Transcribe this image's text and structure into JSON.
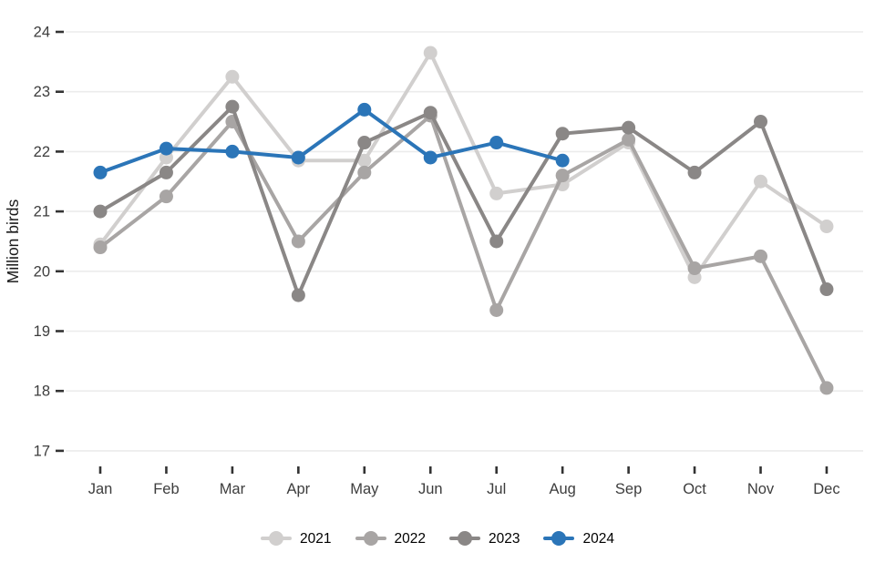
{
  "chart_data": {
    "type": "line",
    "title": "",
    "xlabel": "",
    "ylabel": "Million birds",
    "ylim": [
      17,
      24
    ],
    "y_ticks": [
      17,
      18,
      19,
      20,
      21,
      22,
      23,
      24
    ],
    "grid": true,
    "legend_position": "bottom",
    "categories": [
      "Jan",
      "Feb",
      "Mar",
      "Apr",
      "May",
      "Jun",
      "Jul",
      "Aug",
      "Sep",
      "Oct",
      "Nov",
      "Dec"
    ],
    "series": [
      {
        "name": "2021",
        "color": "#d1cfce",
        "values": [
          20.45,
          21.9,
          23.25,
          21.85,
          21.85,
          23.65,
          21.3,
          21.45,
          22.15,
          19.9,
          21.5,
          20.75
        ]
      },
      {
        "name": "2022",
        "color": "#a8a5a4",
        "values": [
          20.4,
          21.25,
          22.5,
          20.5,
          21.65,
          22.6,
          19.35,
          21.6,
          22.2,
          20.05,
          20.25,
          18.05
        ]
      },
      {
        "name": "2023",
        "color": "#8a8786",
        "values": [
          21.0,
          21.65,
          22.75,
          19.6,
          22.15,
          22.65,
          20.5,
          22.3,
          22.4,
          21.65,
          22.5,
          19.7
        ]
      },
      {
        "name": "2024",
        "color": "#2b75b8",
        "values": [
          21.65,
          22.05,
          22.0,
          21.9,
          22.7,
          21.9,
          22.15,
          21.85
        ]
      }
    ]
  },
  "legend": {
    "items": [
      {
        "label": "2021"
      },
      {
        "label": "2022"
      },
      {
        "label": "2023"
      },
      {
        "label": "2024"
      }
    ]
  },
  "style": {
    "gridline_color": "#ececec",
    "tick_mark_color": "#333333",
    "tick_label_color": "#3d3d3d",
    "axis_title_color": "#1a1a1a"
  }
}
